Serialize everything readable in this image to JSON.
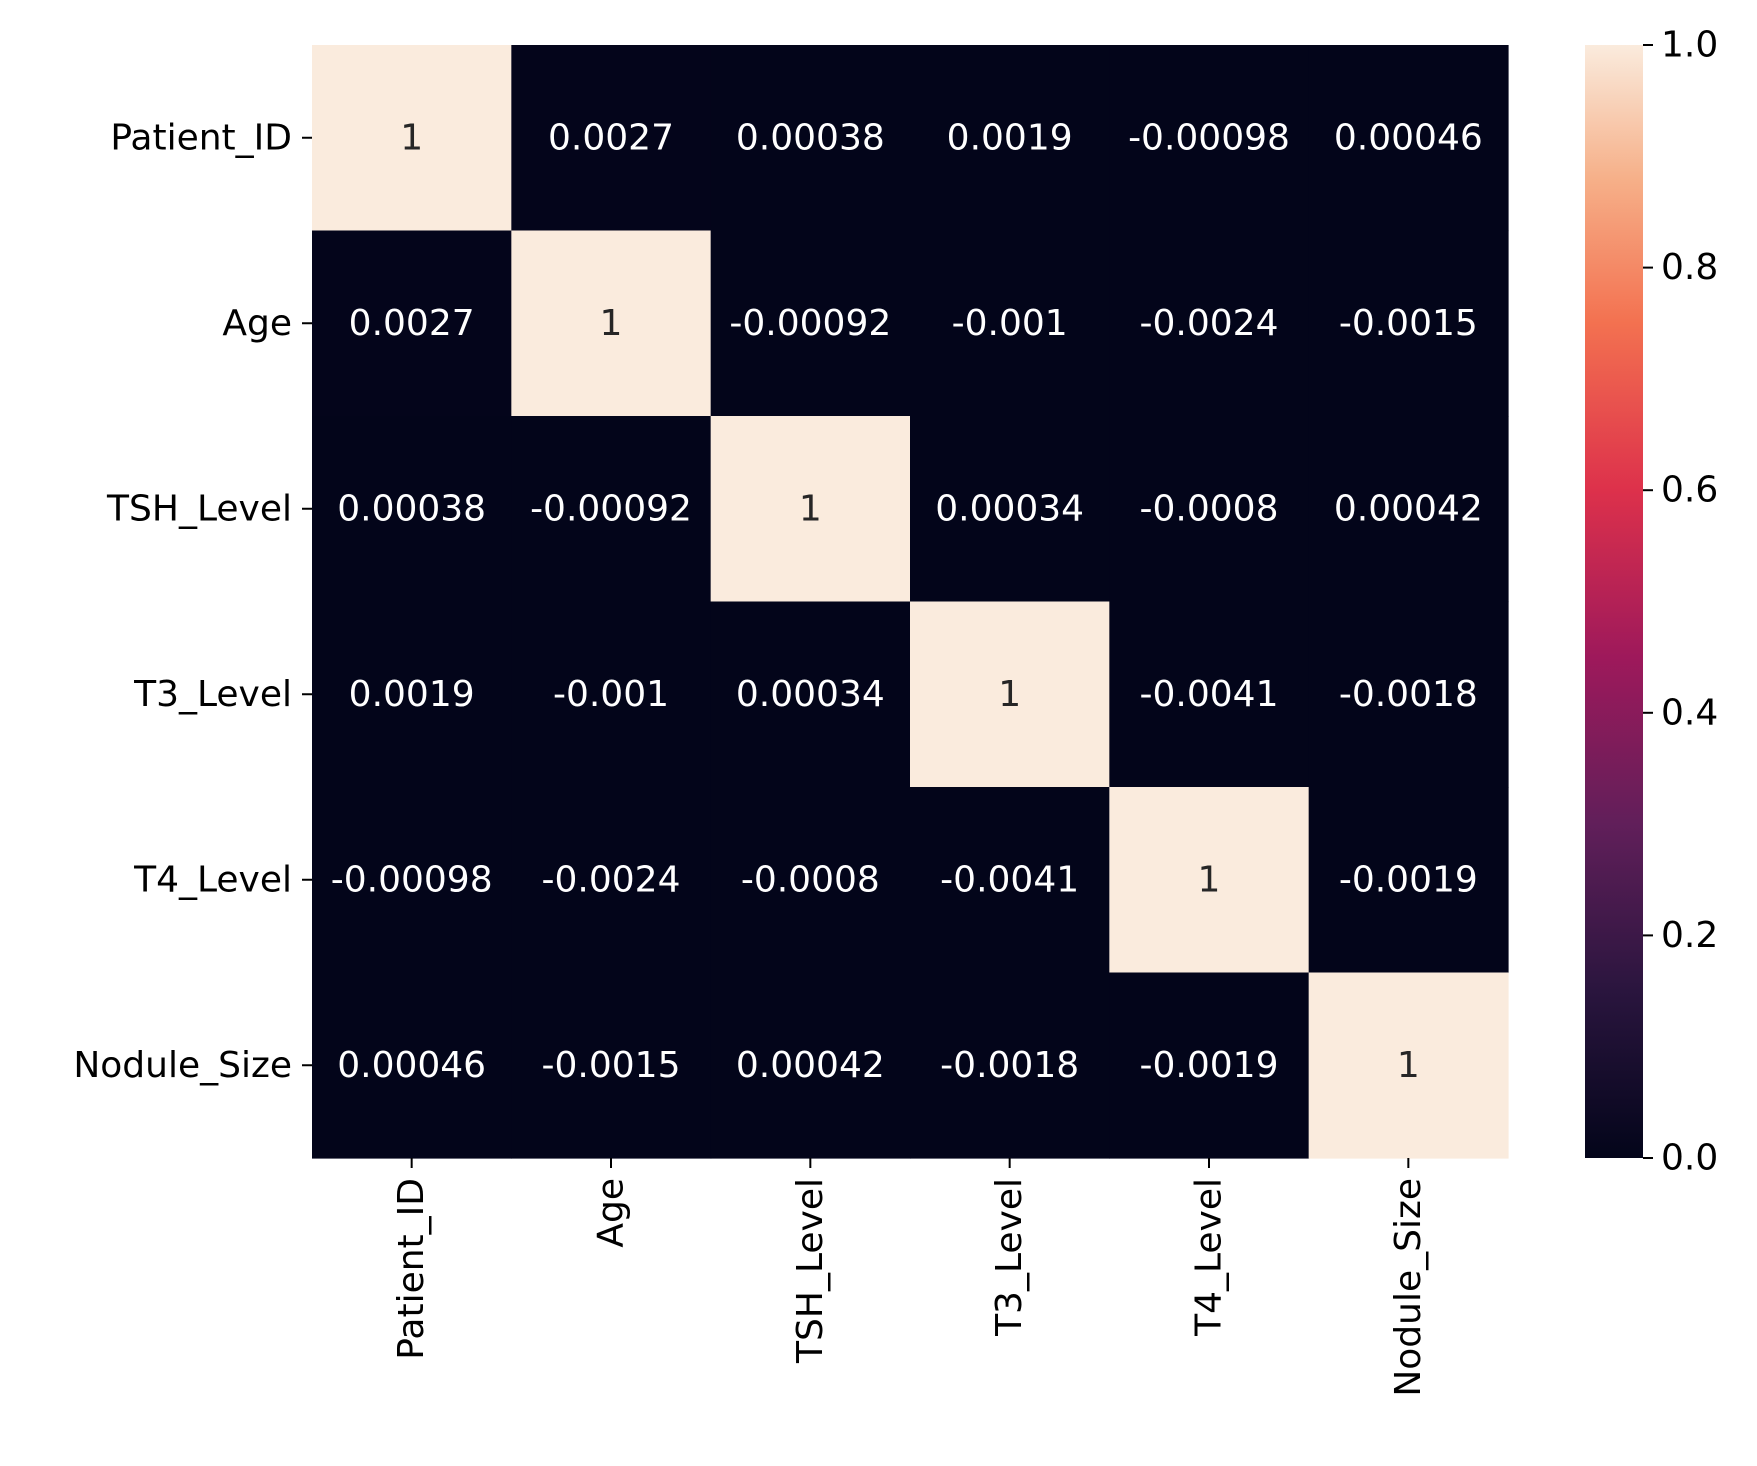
{
  "chart_data": {
    "type": "heatmap",
    "title": "",
    "xlabel": "",
    "ylabel": "",
    "row_labels": [
      "Patient_ID",
      "Age",
      "TSH_Level",
      "T3_Level",
      "T4_Level",
      "Nodule_Size"
    ],
    "col_labels": [
      "Patient_ID",
      "Age",
      "TSH_Level",
      "T3_Level",
      "T4_Level",
      "Nodule_Size"
    ],
    "values": [
      [
        1,
        0.0027,
        0.00038,
        0.0019,
        -0.00098,
        0.00046
      ],
      [
        0.0027,
        1,
        -0.00092,
        -0.001,
        -0.0024,
        -0.0015
      ],
      [
        0.00038,
        -0.00092,
        1,
        0.00034,
        -0.0008,
        0.00042
      ],
      [
        0.0019,
        -0.001,
        0.00034,
        1,
        -0.0041,
        -0.0018
      ],
      [
        -0.00098,
        -0.0024,
        -0.0008,
        -0.0041,
        1,
        -0.0019
      ],
      [
        0.00046,
        -0.0015,
        0.00042,
        -0.0018,
        -0.0019,
        1
      ]
    ],
    "annotations": [
      [
        "1",
        "0.0027",
        "0.00038",
        "0.0019",
        "-0.00098",
        "0.00046"
      ],
      [
        "0.0027",
        "1",
        "-0.00092",
        "-0.001",
        "-0.0024",
        "-0.0015"
      ],
      [
        "0.00038",
        "-0.00092",
        "1",
        "0.00034",
        "-0.0008",
        "0.00042"
      ],
      [
        "0.0019",
        "-0.001",
        "0.00034",
        "1",
        "-0.0041",
        "-0.0018"
      ],
      [
        "-0.00098",
        "-0.0024",
        "-0.0008",
        "-0.0041",
        "1",
        "-0.0019"
      ],
      [
        "0.00046",
        "-0.0015",
        "0.00042",
        "-0.0018",
        "-0.0019",
        "1"
      ]
    ],
    "colorbar": {
      "range": [
        0.0,
        1.0
      ],
      "ticks": [
        "0.0",
        "0.2",
        "0.4",
        "0.6",
        "0.8",
        "1.0"
      ],
      "colormap": "rocket",
      "low_color": "#03051a",
      "high_color": "#faebdd"
    },
    "grid": false,
    "legend": "colorbar-right"
  }
}
